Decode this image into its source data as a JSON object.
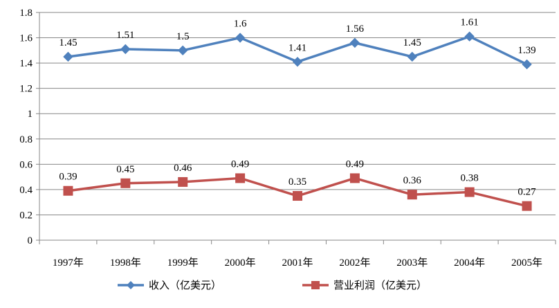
{
  "chart_data": {
    "type": "line",
    "categories": [
      "1997年",
      "1998年",
      "1999年",
      "2000年",
      "2001年",
      "2002年",
      "2003年",
      "2004年",
      "2005年"
    ],
    "series": [
      {
        "name": "收入（亿美元）",
        "values": [
          1.45,
          1.51,
          1.5,
          1.6,
          1.41,
          1.56,
          1.45,
          1.61,
          1.39
        ],
        "labels": [
          "1.45",
          "1.51",
          "1.5",
          "1.6",
          "1.41",
          "1.56",
          "1.45",
          "1.61",
          "1.39"
        ],
        "color": "#4F81BD",
        "marker": "diamond"
      },
      {
        "name": "营业利润（亿美元）",
        "values": [
          0.39,
          0.45,
          0.46,
          0.49,
          0.35,
          0.49,
          0.36,
          0.38,
          0.27
        ],
        "labels": [
          "0.39",
          "0.45",
          "0.46",
          "0.49",
          "0.35",
          "0.49",
          "0.36",
          "0.38",
          "0.27"
        ],
        "color": "#C0504D",
        "marker": "square"
      }
    ],
    "ylim": [
      0,
      1.8
    ],
    "yticks": [
      "0",
      "0.2",
      "0.4",
      "0.6",
      "0.8",
      "1",
      "1.2",
      "1.4",
      "1.6",
      "1.8"
    ],
    "grid": true,
    "legend_position": "bottom"
  }
}
